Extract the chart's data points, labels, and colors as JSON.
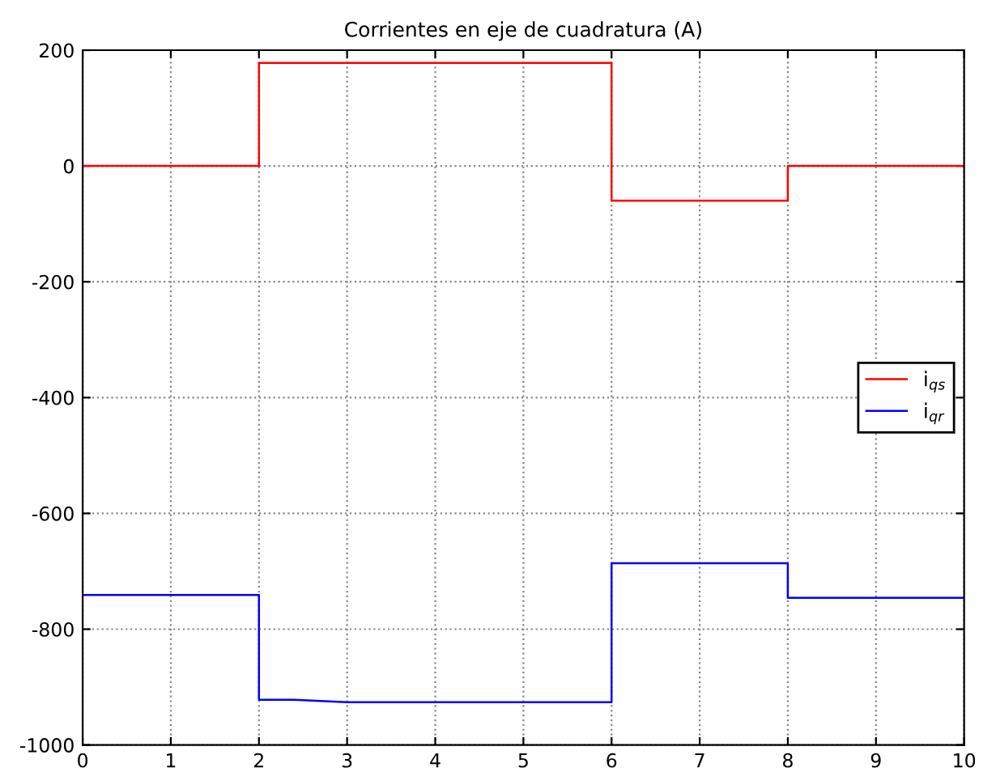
{
  "chart_data": {
    "type": "line",
    "title": "Corrientes en eje de cuadratura (A)",
    "series": [
      {
        "name": "i$_{qs}$",
        "color": "#ff0000",
        "x": [
          0,
          2,
          2,
          6,
          6,
          8,
          8,
          10
        ],
        "values": [
          0,
          0,
          178,
          178,
          -60,
          -60,
          0,
          0
        ]
      },
      {
        "name": "i$_{qr}$",
        "color": "#0000ff",
        "x": [
          0,
          2,
          2,
          2.4,
          3,
          6,
          6,
          8,
          8,
          10
        ],
        "values": [
          -741,
          -741,
          -922,
          -922,
          -926,
          -926,
          -686,
          -686,
          -746,
          -746
        ]
      }
    ],
    "xlim": [
      0,
      10
    ],
    "xticks": [
      0,
      1,
      2,
      3,
      4,
      5,
      6,
      7,
      8,
      9,
      10
    ],
    "ylim": [
      -1000,
      200
    ],
    "yticks": [
      -1000,
      -800,
      -600,
      -400,
      -200,
      0,
      200
    ],
    "grid": true,
    "legend": "center right",
    "line_style": "solid",
    "marker": "none"
  }
}
